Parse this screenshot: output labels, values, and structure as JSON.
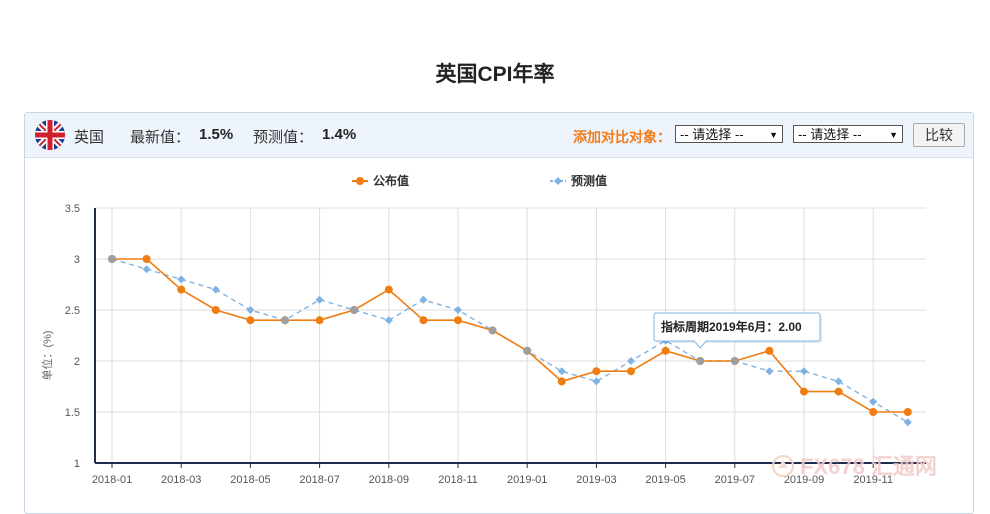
{
  "page": {
    "title": "英国CPI年率"
  },
  "header": {
    "country": "英国",
    "latest_label": "最新值：",
    "latest_value": "1.5%",
    "forecast_label": "预测值：",
    "forecast_value": "1.4%",
    "compare_label": "添加对比对象：",
    "select1": "-- 请选择 --",
    "select2": "-- 请选择 --",
    "compare_button": "比较"
  },
  "watermark": {
    "text": "FX678 汇通网"
  },
  "colors": {
    "published": "#f07d11",
    "forecast": "#7fb3e3",
    "axis": "#1d2c4f",
    "grid": "#dddddd",
    "compare_label": "#f07d1a"
  },
  "icons": {
    "flag": "uk-flag-icon"
  },
  "chart_data": {
    "type": "line",
    "title": "",
    "xlabel": "",
    "ylabel": "单位：(%)",
    "ylim": [
      1,
      3.5
    ],
    "yticks": [
      "1",
      "1.5",
      "2",
      "2.5",
      "3",
      "3.5"
    ],
    "x": [
      "2018-01",
      "2018-02",
      "2018-03",
      "2018-04",
      "2018-05",
      "2018-06",
      "2018-07",
      "2018-08",
      "2018-09",
      "2018-10",
      "2018-11",
      "2018-12",
      "2019-01",
      "2019-02",
      "2019-03",
      "2019-04",
      "2019-05",
      "2019-06",
      "2019-07",
      "2019-08",
      "2019-09",
      "2019-10",
      "2019-11",
      "2019-12"
    ],
    "xtick_labels": [
      "2018-01",
      "2018-03",
      "2018-05",
      "2018-07",
      "2018-09",
      "2018-11",
      "2019-01",
      "2019-03",
      "2019-05",
      "2019-07",
      "2019-09",
      "2019-11"
    ],
    "series": [
      {
        "name": "公布值",
        "color": "#f07d11",
        "style": "solid",
        "values": [
          3.0,
          3.0,
          2.7,
          2.5,
          2.4,
          2.4,
          2.4,
          2.5,
          2.7,
          2.4,
          2.4,
          2.3,
          2.1,
          1.8,
          1.9,
          1.9,
          2.1,
          2.0,
          2.0,
          2.1,
          1.7,
          1.7,
          1.5,
          1.5
        ]
      },
      {
        "name": "预测值",
        "color": "#7fb3e3",
        "style": "dashed",
        "values": [
          3.0,
          2.9,
          2.8,
          2.7,
          2.5,
          2.4,
          2.6,
          2.5,
          2.4,
          2.6,
          2.5,
          2.3,
          2.1,
          1.9,
          1.8,
          2.0,
          2.2,
          2.0,
          2.0,
          1.9,
          1.9,
          1.8,
          1.6,
          1.4
        ]
      }
    ],
    "tooltip": {
      "text": "指标周期2019年6月：2.00",
      "index": 17
    },
    "grid": true,
    "legend": "top-center"
  }
}
